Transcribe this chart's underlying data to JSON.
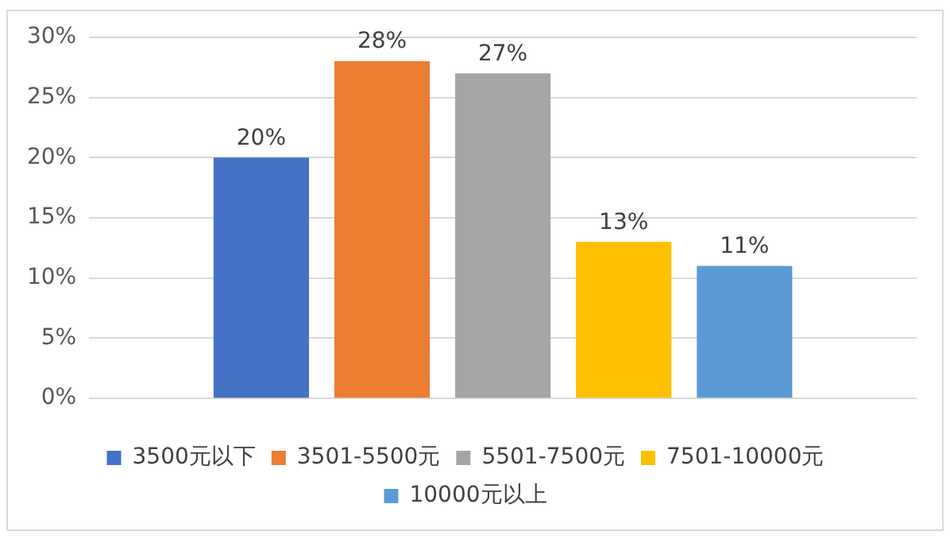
{
  "chart_data": {
    "type": "bar",
    "categories": [
      null
    ],
    "series": [
      {
        "name": "3500元以下",
        "color": "#4472c4",
        "values": [
          20
        ],
        "value_labels": [
          "20%"
        ]
      },
      {
        "name": "3501-5500元",
        "color": "#ed7d31",
        "values": [
          28
        ],
        "value_labels": [
          "28%"
        ]
      },
      {
        "name": "5501-7500元",
        "color": "#a5a5a5",
        "values": [
          27
        ],
        "value_labels": [
          "27%"
        ]
      },
      {
        "name": "7501-10000元",
        "color": "#ffc000",
        "values": [
          13
        ],
        "value_labels": [
          "13%"
        ]
      },
      {
        "name": "10000元以上",
        "color": "#5b9bd5",
        "values": [
          11
        ],
        "value_labels": [
          "11%"
        ]
      }
    ],
    "ylim": [
      0,
      30
    ],
    "yticks": [
      {
        "value": 0,
        "label": "0%"
      },
      {
        "value": 5,
        "label": "5%"
      },
      {
        "value": 10,
        "label": "10%"
      },
      {
        "value": 15,
        "label": "15%"
      },
      {
        "value": 20,
        "label": "20%"
      },
      {
        "value": 25,
        "label": "25%"
      },
      {
        "value": 30,
        "label": "30%"
      }
    ],
    "grid": "y",
    "legend": "bottom"
  }
}
